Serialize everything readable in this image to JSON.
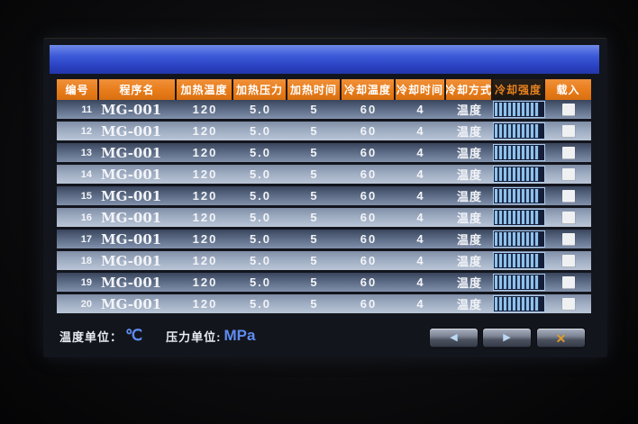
{
  "titlebar": {},
  "table": {
    "headers": [
      "编号",
      "程序名",
      "加热温度",
      "加热压力",
      "加热时间",
      "冷却温度",
      "冷却时间",
      "冷却方式",
      "冷却强度",
      "载入"
    ],
    "rows": [
      {
        "no": "11",
        "name": "MG-001",
        "heat_temp": "120",
        "heat_pressure": "5.0",
        "heat_time": "5",
        "cool_temp": "60",
        "cool_time": "4",
        "cool_mode": "温度",
        "loaded": false
      },
      {
        "no": "12",
        "name": "MG-001",
        "heat_temp": "120",
        "heat_pressure": "5.0",
        "heat_time": "5",
        "cool_temp": "60",
        "cool_time": "4",
        "cool_mode": "温度",
        "loaded": false
      },
      {
        "no": "13",
        "name": "MG-001",
        "heat_temp": "120",
        "heat_pressure": "5.0",
        "heat_time": "5",
        "cool_temp": "60",
        "cool_time": "4",
        "cool_mode": "温度",
        "loaded": false
      },
      {
        "no": "14",
        "name": "MG-001",
        "heat_temp": "120",
        "heat_pressure": "5.0",
        "heat_time": "5",
        "cool_temp": "60",
        "cool_time": "4",
        "cool_mode": "温度",
        "loaded": false
      },
      {
        "no": "15",
        "name": "MG-001",
        "heat_temp": "120",
        "heat_pressure": "5.0",
        "heat_time": "5",
        "cool_temp": "60",
        "cool_time": "4",
        "cool_mode": "温度",
        "loaded": false
      },
      {
        "no": "16",
        "name": "MG-001",
        "heat_temp": "120",
        "heat_pressure": "5.0",
        "heat_time": "5",
        "cool_temp": "60",
        "cool_time": "4",
        "cool_mode": "温度",
        "loaded": false
      },
      {
        "no": "17",
        "name": "MG-001",
        "heat_temp": "120",
        "heat_pressure": "5.0",
        "heat_time": "5",
        "cool_temp": "60",
        "cool_time": "4",
        "cool_mode": "温度",
        "loaded": false
      },
      {
        "no": "18",
        "name": "MG-001",
        "heat_temp": "120",
        "heat_pressure": "5.0",
        "heat_time": "5",
        "cool_temp": "60",
        "cool_time": "4",
        "cool_mode": "温度",
        "loaded": false
      },
      {
        "no": "19",
        "name": "MG-001",
        "heat_temp": "120",
        "heat_pressure": "5.0",
        "heat_time": "5",
        "cool_temp": "60",
        "cool_time": "4",
        "cool_mode": "温度",
        "loaded": false
      },
      {
        "no": "20",
        "name": "MG-001",
        "heat_temp": "120",
        "heat_pressure": "5.0",
        "heat_time": "5",
        "cool_temp": "60",
        "cool_time": "4",
        "cool_mode": "温度",
        "loaded": false
      }
    ],
    "cooling_intensity_percent": 90
  },
  "footer": {
    "temp_unit_label": "温度单位：",
    "temp_unit_value": "℃",
    "pressure_unit_label": "压力单位:",
    "pressure_unit_value": "MPa"
  },
  "nav": {
    "prev": "◀",
    "next": "▶",
    "close": "✕"
  },
  "colors": {
    "header_orange": "#e87c1a",
    "intensity_header_text": "#e8821f",
    "titlebar_blue_top": "#6f8ae8",
    "titlebar_blue_bottom": "#2336a8",
    "unit_value_blue": "#5f8cf0",
    "bar_stripe_blue": "#8fc2ec",
    "close_x_orange": "#e09a28",
    "row_dark": "#5a6983",
    "row_light": "#9dabc1"
  }
}
